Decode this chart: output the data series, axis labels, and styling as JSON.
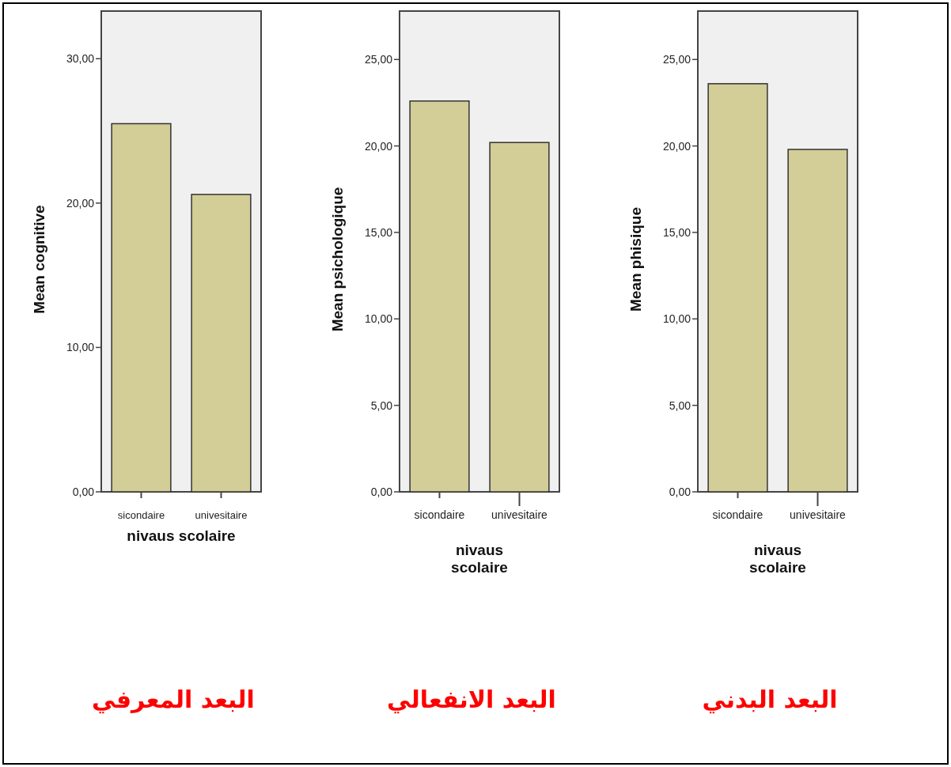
{
  "chart_data": [
    {
      "type": "bar",
      "xlabel": "nivaus scolaire",
      "ylabel": "Mean cognitive",
      "categories": [
        "sicondaire",
        "univesitaire"
      ],
      "values": [
        25.5,
        20.6
      ],
      "color": "#d3cd97",
      "ylim": [
        0,
        33.3
      ],
      "yticks": [
        {
          "value": 0,
          "label": "0,00"
        },
        {
          "value": 10,
          "label": "10,00"
        },
        {
          "value": 20,
          "label": "20,00"
        },
        {
          "value": 30,
          "label": "30,00"
        }
      ],
      "grid": false,
      "annotations": [
        "البعد المعرفي"
      ]
    },
    {
      "type": "bar",
      "xlabel": "nivaus scolaire",
      "ylabel": "Mean psichologique",
      "categories": [
        "sicondaire",
        "univesitaire"
      ],
      "values": [
        22.6,
        20.2
      ],
      "color": "#d3cd97",
      "ylim": [
        0,
        27.8
      ],
      "yticks": [
        {
          "value": 0,
          "label": "0,00"
        },
        {
          "value": 5,
          "label": "5,00"
        },
        {
          "value": 10,
          "label": "10,00"
        },
        {
          "value": 15,
          "label": "15,00"
        },
        {
          "value": 20,
          "label": "20,00"
        },
        {
          "value": 25,
          "label": "25,00"
        }
      ],
      "grid": false,
      "annotations": [
        "البعد الانفعالي"
      ]
    },
    {
      "type": "bar",
      "xlabel": "nivaus scolaire",
      "ylabel": "Mean phisique",
      "categories": [
        "sicondaire",
        "univesitaire"
      ],
      "values": [
        23.6,
        19.8
      ],
      "color": "#d3cd97",
      "ylim": [
        0,
        27.8
      ],
      "yticks": [
        {
          "value": 0,
          "label": "0,00"
        },
        {
          "value": 5,
          "label": "5,00"
        },
        {
          "value": 10,
          "label": "10,00"
        },
        {
          "value": 15,
          "label": "15,00"
        },
        {
          "value": 20,
          "label": "20,00"
        },
        {
          "value": 25,
          "label": "25,00"
        }
      ],
      "grid": false,
      "annotations": [
        "البعد البدني"
      ]
    }
  ]
}
